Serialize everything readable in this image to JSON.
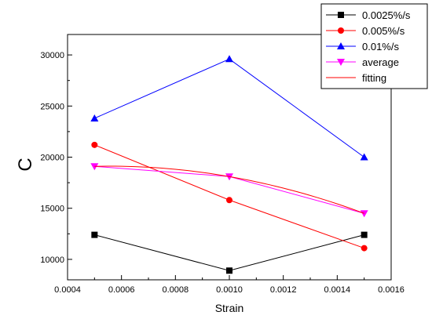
{
  "chart_data": {
    "type": "line",
    "xlabel": "Strain",
    "ylabel": "C",
    "xlim": [
      0.0004,
      0.0016
    ],
    "ylim": [
      8000,
      32000
    ],
    "xticks": [
      "0.0004",
      "0.0006",
      "0.0008",
      "0.0010",
      "0.0012",
      "0.0014",
      "0.0016"
    ],
    "yticks": [
      "10000",
      "15000",
      "20000",
      "25000",
      "30000"
    ],
    "legend_position": "top-right",
    "grid": false,
    "series": [
      {
        "name": "0.0025%/s",
        "color": "#000000",
        "marker": "square",
        "x": [
          0.0005,
          0.001,
          0.0015
        ],
        "y": [
          12400,
          8900,
          12400
        ]
      },
      {
        "name": "0.005%/s",
        "color": "#ff0000",
        "marker": "circle",
        "x": [
          0.0005,
          0.001,
          0.0015
        ],
        "y": [
          21200,
          15800,
          11100
        ]
      },
      {
        "name": "0.01%/s",
        "color": "#0000ff",
        "marker": "triangle-up",
        "x": [
          0.0005,
          0.001,
          0.0015
        ],
        "y": [
          23800,
          29600,
          20000
        ]
      },
      {
        "name": "average",
        "color": "#ff00ff",
        "marker": "triangle-down",
        "x": [
          0.0005,
          0.001,
          0.0015
        ],
        "y": [
          19100,
          18100,
          14500
        ]
      },
      {
        "name": "fitting",
        "color": "#ff0000",
        "marker": "none",
        "curve": "quadratic",
        "x": [
          0.0005,
          0.001,
          0.0015
        ],
        "y": [
          19100,
          18100,
          14500
        ]
      }
    ]
  }
}
